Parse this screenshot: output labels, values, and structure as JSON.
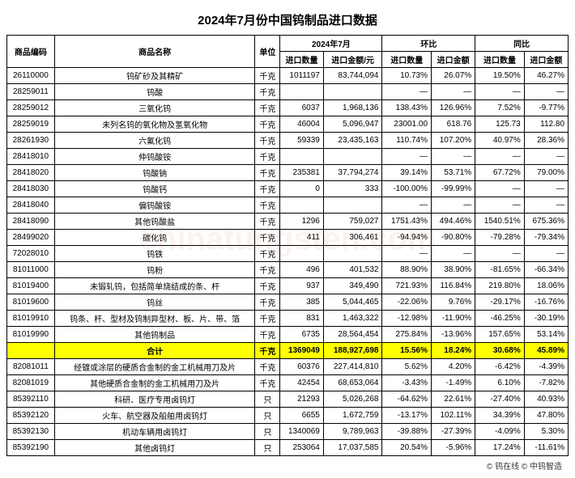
{
  "title": "2024年7月份中国钨制品进口数据",
  "watermark": "chinatungsten.com",
  "footer": "© 钨在线 © 中钨智造",
  "header": {
    "code": "商品编码",
    "name": "商品名称",
    "unit": "单位",
    "month": "2024年7月",
    "mom": "环比",
    "yoy": "同比",
    "qty": "进口数量",
    "amt": "进口金额/元",
    "qty2": "进口数量",
    "amt2": "进口金额",
    "qty3": "进口数量",
    "amt3": "进口金额"
  },
  "rows": [
    {
      "code": "26110000",
      "name": "钨矿砂及其精矿",
      "unit": "千克",
      "qty": "1011197",
      "amt": "83,744,094",
      "mq": "10.73%",
      "ma": "26.07%",
      "yq": "19.50%",
      "ya": "46.27%",
      "hl": false
    },
    {
      "code": "28259011",
      "name": "钨酸",
      "unit": "千克",
      "qty": "",
      "amt": "",
      "mq": "—",
      "ma": "—",
      "yq": "—",
      "ya": "—",
      "hl": false
    },
    {
      "code": "28259012",
      "name": "三氧化钨",
      "unit": "千克",
      "qty": "6037",
      "amt": "1,968,136",
      "mq": "138.43%",
      "ma": "126.96%",
      "yq": "7.52%",
      "ya": "-9.77%",
      "hl": false
    },
    {
      "code": "28259019",
      "name": "未列名钨的氧化物及氢氧化物",
      "unit": "千克",
      "qty": "46004",
      "amt": "5,096,947",
      "mq": "23001.00",
      "ma": "618.76",
      "yq": "125.73",
      "ya": "112.80",
      "hl": false
    },
    {
      "code": "28261930",
      "name": "六氟化钨",
      "unit": "千克",
      "qty": "59339",
      "amt": "23,435,163",
      "mq": "110.74%",
      "ma": "107.20%",
      "yq": "40.97%",
      "ya": "28.36%",
      "hl": false
    },
    {
      "code": "28418010",
      "name": "仲钨酸铵",
      "unit": "千克",
      "qty": "",
      "amt": "",
      "mq": "—",
      "ma": "—",
      "yq": "—",
      "ya": "—",
      "hl": false
    },
    {
      "code": "28418020",
      "name": "钨酸钠",
      "unit": "千克",
      "qty": "235381",
      "amt": "37,794,274",
      "mq": "39.14%",
      "ma": "53.71%",
      "yq": "67.72%",
      "ya": "79.00%",
      "hl": false
    },
    {
      "code": "28418030",
      "name": "钨酸钙",
      "unit": "千克",
      "qty": "0",
      "amt": "333",
      "mq": "-100.00%",
      "ma": "-99.99%",
      "yq": "—",
      "ya": "—",
      "hl": false
    },
    {
      "code": "28418040",
      "name": "偏钨酸铵",
      "unit": "千克",
      "qty": "",
      "amt": "",
      "mq": "—",
      "ma": "—",
      "yq": "—",
      "ya": "—",
      "hl": false
    },
    {
      "code": "28418090",
      "name": "其他钨酸盐",
      "unit": "千克",
      "qty": "1296",
      "amt": "759,027",
      "mq": "1751.43%",
      "ma": "494.46%",
      "yq": "1540.51%",
      "ya": "675.36%",
      "hl": false
    },
    {
      "code": "28499020",
      "name": "碳化钨",
      "unit": "千克",
      "qty": "411",
      "amt": "306,461",
      "mq": "-94.94%",
      "ma": "-90.80%",
      "yq": "-79.28%",
      "ya": "-79.34%",
      "hl": false
    },
    {
      "code": "72028010",
      "name": "钨铁",
      "unit": "千克",
      "qty": "",
      "amt": "",
      "mq": "—",
      "ma": "—",
      "yq": "—",
      "ya": "—",
      "hl": false
    },
    {
      "code": "81011000",
      "name": "钨粉",
      "unit": "千克",
      "qty": "496",
      "amt": "401,532",
      "mq": "88.90%",
      "ma": "38.90%",
      "yq": "-81.65%",
      "ya": "-66.34%",
      "hl": false
    },
    {
      "code": "81019400",
      "name": "未锻轧钨，包括简单烧结成的条、杆",
      "unit": "千克",
      "qty": "937",
      "amt": "349,490",
      "mq": "721.93%",
      "ma": "116.84%",
      "yq": "219.80%",
      "ya": "18.06%",
      "hl": false
    },
    {
      "code": "81019600",
      "name": "钨丝",
      "unit": "千克",
      "qty": "385",
      "amt": "5,044,465",
      "mq": "-22.06%",
      "ma": "9.76%",
      "yq": "-29.17%",
      "ya": "-16.76%",
      "hl": false
    },
    {
      "code": "81019910",
      "name": "钨条、杆、型材及钨制异型材、板、片、带、箔",
      "unit": "千克",
      "qty": "831",
      "amt": "1,463,322",
      "mq": "-12.98%",
      "ma": "-11.90%",
      "yq": "-46.25%",
      "ya": "-30.19%",
      "hl": false
    },
    {
      "code": "81019990",
      "name": "其他钨制品",
      "unit": "千克",
      "qty": "6735",
      "amt": "28,564,454",
      "mq": "275.84%",
      "ma": "-13.96%",
      "yq": "157.65%",
      "ya": "53.14%",
      "hl": false
    },
    {
      "code": "",
      "name": "合计",
      "unit": "千克",
      "qty": "1369049",
      "amt": "188,927,698",
      "mq": "15.56%",
      "ma": "18.24%",
      "yq": "30.68%",
      "ya": "45.89%",
      "hl": true
    },
    {
      "code": "82081011",
      "name": "经镀或涂层的硬质合金制的金工机械用刀及片",
      "unit": "千克",
      "qty": "60376",
      "amt": "227,414,810",
      "mq": "5.62%",
      "ma": "4.20%",
      "yq": "-6.42%",
      "ya": "-4.39%",
      "hl": false
    },
    {
      "code": "82081019",
      "name": "其他硬质合金制的金工机械用刀及片",
      "unit": "千克",
      "qty": "42454",
      "amt": "68,653,064",
      "mq": "-3.43%",
      "ma": "-1.49%",
      "yq": "6.10%",
      "ya": "-7.82%",
      "hl": false
    },
    {
      "code": "85392110",
      "name": "科研、医疗专用卤钨灯",
      "unit": "只",
      "qty": "21293",
      "amt": "5,026,268",
      "mq": "-64.62%",
      "ma": "22.61%",
      "yq": "-27.40%",
      "ya": "40.93%",
      "hl": false
    },
    {
      "code": "85392120",
      "name": "火车、航空器及船舶用卤钨灯",
      "unit": "只",
      "qty": "6655",
      "amt": "1,672,759",
      "mq": "-13.17%",
      "ma": "102.11%",
      "yq": "34.39%",
      "ya": "47.80%",
      "hl": false
    },
    {
      "code": "85392130",
      "name": "机动车辆用卤钨灯",
      "unit": "只",
      "qty": "1340069",
      "amt": "9,789,963",
      "mq": "-39.88%",
      "ma": "-27.39%",
      "yq": "-4.09%",
      "ya": "5.30%",
      "hl": false
    },
    {
      "code": "85392190",
      "name": "其他卤钨灯",
      "unit": "只",
      "qty": "253064",
      "amt": "17,037,585",
      "mq": "20.54%",
      "ma": "-5.96%",
      "yq": "17.24%",
      "ya": "-11.61%",
      "hl": false
    }
  ]
}
